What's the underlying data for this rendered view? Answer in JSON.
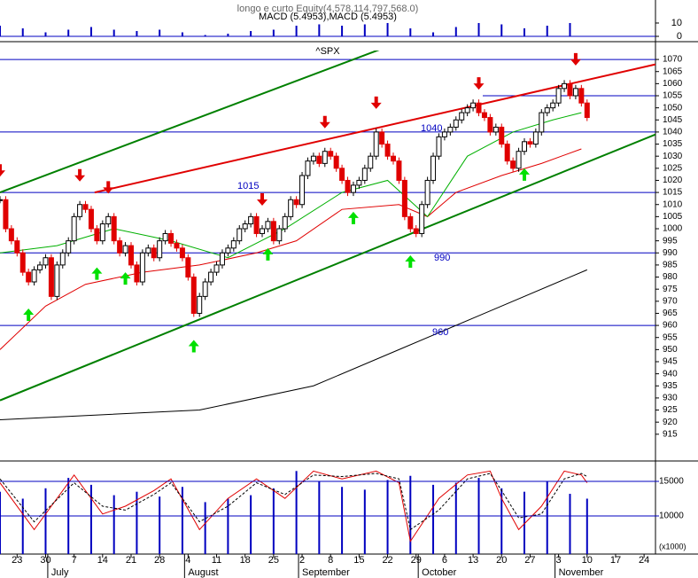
{
  "chart_data": {
    "type": "candlestick",
    "title": "^SPX",
    "subtitle": "longo e curto Equity(4,578,114,797,568.0)",
    "macd_label": "MACD (5.4953),MACD (5.4953)",
    "close": [
      1012,
      1000,
      995,
      990,
      982,
      978,
      983,
      985,
      988,
      972,
      985,
      990,
      995,
      1005,
      1010,
      1008,
      1000,
      995,
      1002,
      1005,
      995,
      990,
      993,
      985,
      978,
      990,
      992,
      988,
      995,
      998,
      994,
      992,
      988,
      980,
      965,
      972,
      978,
      982,
      985,
      990,
      992,
      995,
      1000,
      1002,
      1005,
      998,
      1000,
      1003,
      995,
      1000,
      1005,
      1012,
      1010,
      1022,
      1028,
      1030,
      1027,
      1032,
      1030,
      1025,
      1020,
      1015,
      1018,
      1020,
      1025,
      1030,
      1040,
      1035,
      1030,
      1028,
      1020,
      1005,
      1000,
      998,
      1010,
      1020,
      1030,
      1038,
      1040,
      1042,
      1045,
      1048,
      1050,
      1052,
      1048,
      1046,
      1040,
      1042,
      1035,
      1028,
      1025,
      1032,
      1036,
      1035,
      1040,
      1048,
      1050,
      1052,
      1058,
      1060,
      1055,
      1058,
      1052,
      1046
    ],
    "xlim": [
      0,
      115
    ],
    "xticks": [
      {
        "value": 3,
        "label": "23"
      },
      {
        "value": 8,
        "label": "30"
      },
      {
        "value": 13,
        "label": "7"
      },
      {
        "value": 18,
        "label": "14"
      },
      {
        "value": 23,
        "label": "21"
      },
      {
        "value": 28,
        "label": "28"
      },
      {
        "value": 33,
        "label": "4"
      },
      {
        "value": 38,
        "label": "11"
      },
      {
        "value": 43,
        "label": "18"
      },
      {
        "value": 48,
        "label": "25"
      },
      {
        "value": 53,
        "label": "2"
      },
      {
        "value": 58,
        "label": "8"
      },
      {
        "value": 63,
        "label": "15"
      },
      {
        "value": 68,
        "label": "22"
      },
      {
        "value": 73,
        "label": "29"
      },
      {
        "value": 78,
        "label": "6"
      },
      {
        "value": 83,
        "label": "13"
      },
      {
        "value": 88,
        "label": "20"
      },
      {
        "value": 93,
        "label": "27"
      },
      {
        "value": 98,
        "label": "3"
      },
      {
        "value": 103,
        "label": "10"
      },
      {
        "value": 108,
        "label": "17"
      },
      {
        "value": 113,
        "label": "24"
      }
    ],
    "months": {
      "labels": [
        "July",
        "August",
        "September",
        "October",
        "November"
      ],
      "x": [
        9,
        33,
        53,
        74,
        98
      ]
    },
    "ylim": [
      907.6,
      1073.7
    ],
    "yticks": [
      915,
      920,
      925,
      930,
      935,
      940,
      945,
      950,
      955,
      960,
      965,
      970,
      975,
      980,
      985,
      990,
      995,
      1000,
      1005,
      1010,
      1015,
      1020,
      1025,
      1030,
      1035,
      1040,
      1045,
      1050,
      1055,
      1060,
      1065,
      1070
    ],
    "levels": [
      1070,
      1055,
      1040,
      1015,
      990,
      960
    ],
    "trendlines": [
      {
        "color": "#008000",
        "x": [
          0,
          71
        ],
        "values": [
          1015,
          1078
        ]
      },
      {
        "color": "#008000",
        "x": [
          0,
          115
        ],
        "values": [
          929,
          1039
        ]
      },
      {
        "color": "#e00000",
        "x": [
          16.6,
          115
        ],
        "values": [
          1015,
          1068
        ]
      }
    ],
    "moving_averages": [
      {
        "color": "#000000",
        "x": [
          0,
          35,
          55,
          70,
          85,
          103
        ],
        "values": [
          921,
          925,
          935,
          950,
          965,
          983
        ]
      },
      {
        "color": "#e00000",
        "x": [
          0,
          8,
          15,
          25,
          35,
          45,
          52,
          60,
          70,
          75,
          80,
          88,
          95,
          102
        ],
        "values": [
          950,
          968,
          977,
          982,
          985,
          990,
          995,
          1008,
          1010,
          1005,
          1015,
          1022,
          1027,
          1033
        ]
      },
      {
        "color": "#00b000",
        "x": [
          0,
          10,
          20,
          30,
          40,
          50,
          60,
          68,
          75,
          82,
          90,
          97,
          102
        ],
        "values": [
          990,
          993,
          1000,
          995,
          988,
          1000,
          1015,
          1020,
          1005,
          1030,
          1040,
          1045,
          1048
        ]
      }
    ],
    "signals": {
      "buy": [
        5,
        17,
        22,
        34,
        47,
        62,
        72,
        92
      ],
      "sell": [
        0,
        14,
        19,
        46,
        57,
        66,
        84,
        101
      ]
    },
    "macd": {
      "ylim": [
        -4,
        27.3
      ],
      "yticks": [
        10,
        0
      ],
      "x": [
        0,
        4,
        8,
        12,
        16,
        20,
        24,
        28,
        32,
        36,
        40,
        44,
        48,
        52,
        56,
        60,
        64,
        68,
        72,
        76,
        80,
        84,
        88,
        92,
        96,
        100
      ],
      "values": [
        8,
        6,
        3,
        5,
        7,
        5,
        4,
        5,
        3,
        1,
        2,
        4,
        5,
        8,
        9,
        8,
        9,
        10,
        6,
        3,
        7,
        10,
        9,
        6,
        8,
        10
      ]
    },
    "volume": {
      "ylim": [
        4487,
        17692
      ],
      "yticks": [
        15000,
        10000
      ],
      "unit_label": "(x1000)",
      "x": [
        0,
        4,
        8,
        12,
        16,
        20,
        24,
        28,
        32,
        36,
        40,
        44,
        48,
        52,
        56,
        60,
        64,
        68,
        72,
        76,
        80,
        84,
        88,
        92,
        96,
        100,
        103
      ],
      "values": [
        13500,
        12500,
        14000,
        15500,
        14500,
        13000,
        13500,
        12800,
        14200,
        12000,
        12500,
        13000,
        14000,
        16500,
        15000,
        14200,
        13800,
        15200,
        15800,
        14500,
        14800,
        15500,
        14000,
        13500,
        15000,
        13200,
        12500
      ]
    },
    "stoch": {
      "ylim": [
        0,
        100
      ],
      "x": [
        0,
        6,
        13,
        18,
        22,
        27,
        30,
        35,
        40,
        45,
        50,
        55,
        60,
        66,
        70,
        72,
        77,
        82,
        86,
        88,
        91,
        95,
        99,
        102,
        103
      ],
      "k": [
        80,
        20,
        90,
        40,
        50,
        70,
        85,
        20,
        60,
        85,
        60,
        95,
        85,
        95,
        80,
        5,
        60,
        90,
        95,
        60,
        20,
        50,
        95,
        90,
        80
      ],
      "d": [
        85,
        30,
        80,
        50,
        45,
        65,
        80,
        30,
        50,
        80,
        65,
        90,
        88,
        92,
        85,
        20,
        45,
        85,
        92,
        70,
        35,
        40,
        85,
        92,
        88
      ]
    }
  }
}
